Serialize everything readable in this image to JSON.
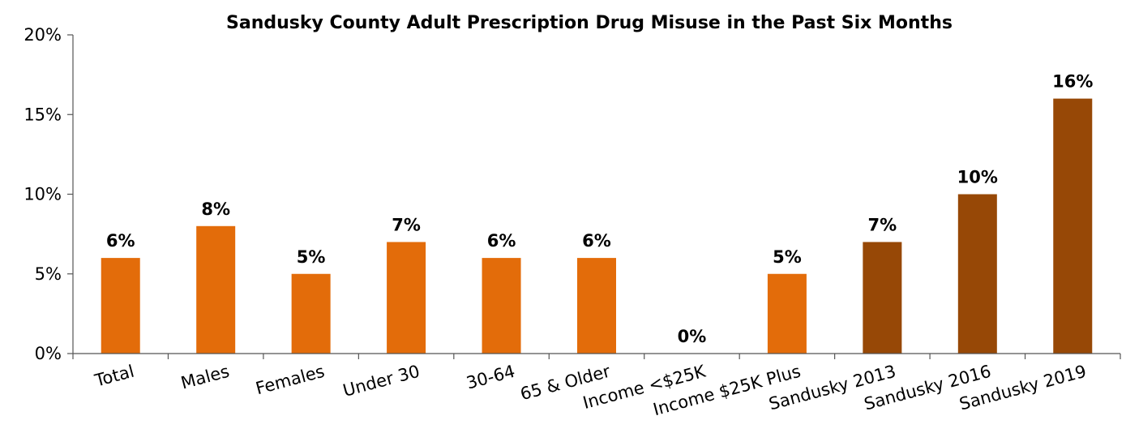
{
  "chart_data": {
    "type": "bar",
    "title": "Sandusky County Adult Prescription Drug Misuse in the Past Six Months",
    "xlabel": "",
    "ylabel": "",
    "ylim": [
      0,
      20
    ],
    "yticks": [
      "0%",
      "5%",
      "10%",
      "15%",
      "20%"
    ],
    "grid": false,
    "legend": "none",
    "categories": [
      "Total",
      "Males",
      "Females",
      "Under 30",
      "30-64",
      "65 & Older",
      "Income <$25K",
      "Income $25K Plus",
      "Sandusky 2013",
      "Sandusky 2016",
      "Sandusky 2019"
    ],
    "values": [
      6,
      8,
      5,
      7,
      6,
      6,
      0,
      5,
      7,
      10,
      16
    ],
    "data_labels": [
      "6%",
      "8%",
      "5%",
      "7%",
      "6%",
      "6%",
      "0%",
      "5%",
      "7%",
      "10%",
      "16%"
    ],
    "colors": [
      "#E36C0A",
      "#E36C0A",
      "#E36C0A",
      "#E36C0A",
      "#E36C0A",
      "#E36C0A",
      "#E36C0A",
      "#E36C0A",
      "#974806",
      "#974806",
      "#974806"
    ]
  }
}
